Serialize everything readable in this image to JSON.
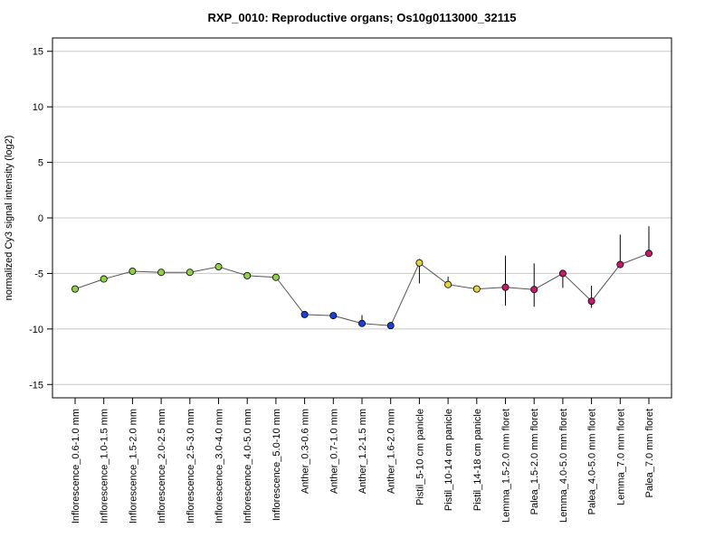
{
  "chart_data": {
    "type": "line",
    "title": "RXP_0010: Reproductive organs; Os10g0113000_32115",
    "xlabel": "",
    "ylabel": "normalized Cy3 signal intensity (log2)",
    "ylim": [
      -16.2,
      16.2
    ],
    "yticks": [
      -15,
      -10,
      -5,
      0,
      5,
      10,
      15
    ],
    "grid": "horizontal",
    "categories": [
      "Inflorescence_0.6-1.0 mm",
      "Inflorescence_1.0-1.5 mm",
      "Inflorescence_1.5-2.0 mm",
      "Inflorescence_2.0-2.5 mm",
      "Inflorescence_2.5-3.0 mm",
      "Inflorescence_3.0-4.0 mm",
      "Inflorescence_4.0-5.0 mm",
      "Inflorescence_5.0-10 mm",
      "Anther_0.3-0.6 mm",
      "Anther_0.7-1.0 mm",
      "Anther_1.2-1.5 mm",
      "Anther_1.6-2.0 mm",
      "Pistil_5-10 cm panicle",
      "Pistil_10-14 cm panicle",
      "Pistil_14-18 cm panicle",
      "Lemma_1.5-2.0 mm floret",
      "Palea_1.5-2.0 mm floret",
      "Lemma_4.0-5.0 mm floret",
      "Palea_4.0-5.0 mm floret",
      "Lemma_7.0 mm floret",
      "Palea_7.0 mm floret"
    ],
    "values": [
      -6.4,
      -5.5,
      -4.8,
      -4.9,
      -4.9,
      -4.4,
      -5.2,
      -5.35,
      -8.7,
      -8.8,
      -9.5,
      -9.7,
      -4.05,
      -6.0,
      -6.4,
      -6.25,
      -6.45,
      -5.0,
      -7.5,
      -4.2,
      -3.2
    ],
    "error_low": [
      -6.5,
      -5.6,
      -4.9,
      -5.0,
      -5.1,
      -4.5,
      -5.4,
      -5.45,
      -9.0,
      -9.1,
      -9.7,
      -9.8,
      -5.9,
      -6.2,
      -6.5,
      -7.9,
      -8.0,
      -6.3,
      -8.1,
      -4.4,
      -3.4
    ],
    "error_high": [
      -6.3,
      -5.4,
      -4.7,
      -4.8,
      -4.7,
      -4.3,
      -5.0,
      -5.25,
      -8.4,
      -8.5,
      -8.75,
      -9.5,
      -3.7,
      -5.3,
      -6.3,
      -3.4,
      -4.1,
      -4.8,
      -6.1,
      -1.5,
      -0.75
    ],
    "point_colors": [
      "#8fd04a",
      "#8fd04a",
      "#8fd04a",
      "#8fd04a",
      "#8fd04a",
      "#8fd04a",
      "#8fd04a",
      "#8fd04a",
      "#1c3fd6",
      "#1c3fd6",
      "#1c3fd6",
      "#1c3fd6",
      "#e6d23a",
      "#e6d23a",
      "#e6d23a",
      "#c8186e",
      "#c8186e",
      "#c8186e",
      "#c8186e",
      "#c8186e",
      "#c8186e"
    ],
    "line_color": "#555555",
    "grid_color": "#c8c8c8"
  }
}
